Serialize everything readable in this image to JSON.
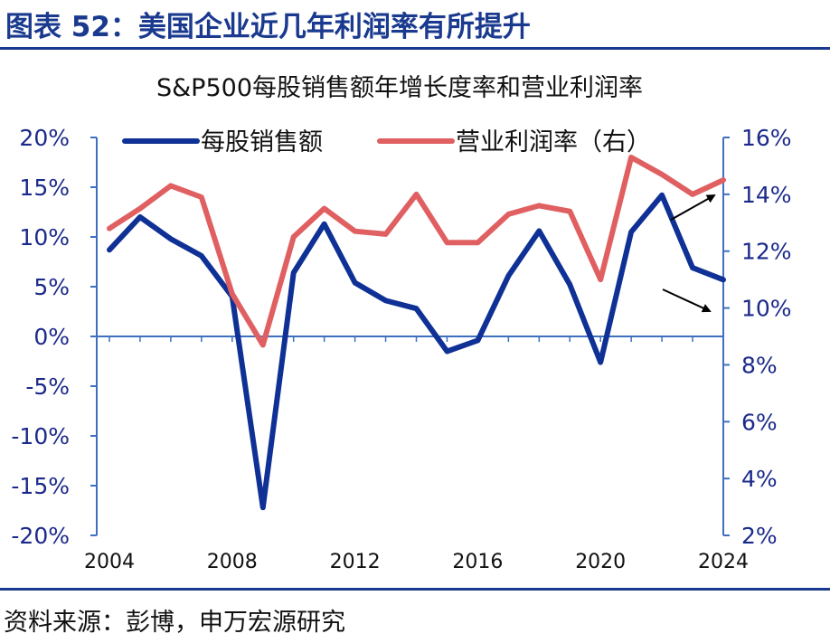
{
  "header": {
    "title": "图表 52：美国企业近几年利润率有所提升"
  },
  "footer": {
    "source": "资料来源：彭博，申万宏源研究"
  },
  "colors": {
    "brand": "#1a3a8f",
    "sales": "#0f3195",
    "margin": "#e06062",
    "axis": "#3f6fbf"
  },
  "chart_data": {
    "type": "line",
    "title": "S&P500每股销售额年增长度率和营业利润率",
    "x": [
      2004,
      2005,
      2006,
      2007,
      2008,
      2009,
      2010,
      2011,
      2012,
      2013,
      2014,
      2015,
      2016,
      2017,
      2018,
      2019,
      2020,
      2021,
      2022,
      2023,
      2024
    ],
    "x_ticks": [
      "2004",
      "2008",
      "2012",
      "2016",
      "2020",
      "2024"
    ],
    "x_tick_values": [
      2004,
      2008,
      2012,
      2016,
      2020,
      2024
    ],
    "y_left": {
      "range": [
        -20,
        20
      ],
      "ticks": [
        "20%",
        "15%",
        "10%",
        "5%",
        "0%",
        "-5%",
        "-10%",
        "-15%",
        "-20%"
      ],
      "tick_values": [
        20,
        15,
        10,
        5,
        0,
        -5,
        -10,
        -15,
        -20
      ]
    },
    "y_right": {
      "range": [
        2,
        16
      ],
      "ticks": [
        "16%",
        "14%",
        "12%",
        "10%",
        "8%",
        "6%",
        "4%",
        "2%"
      ],
      "tick_values": [
        16,
        14,
        12,
        10,
        8,
        6,
        4,
        2
      ]
    },
    "series": [
      {
        "name": "每股销售额",
        "axis": "left",
        "color": "#0f3195",
        "values": [
          8.7,
          12.0,
          9.8,
          8.1,
          4.0,
          -17.2,
          6.4,
          11.3,
          5.4,
          3.6,
          2.8,
          -1.5,
          -0.4,
          6.1,
          10.6,
          5.2,
          -2.6,
          10.5,
          14.2,
          6.9,
          5.7
        ]
      },
      {
        "name": "营业利润率（右）",
        "axis": "right",
        "color": "#e06062",
        "values": [
          12.8,
          13.5,
          14.3,
          13.9,
          10.5,
          8.7,
          12.5,
          13.5,
          12.7,
          12.6,
          14.0,
          12.3,
          12.3,
          13.3,
          13.6,
          13.4,
          11.0,
          15.3,
          14.7,
          14.0,
          14.5
        ]
      }
    ],
    "legend": "top",
    "annotations": [
      {
        "type": "arrow",
        "description": "upward arrow pointing to right axis"
      },
      {
        "type": "arrow",
        "description": "downward arrow pointing to right axis"
      }
    ]
  }
}
